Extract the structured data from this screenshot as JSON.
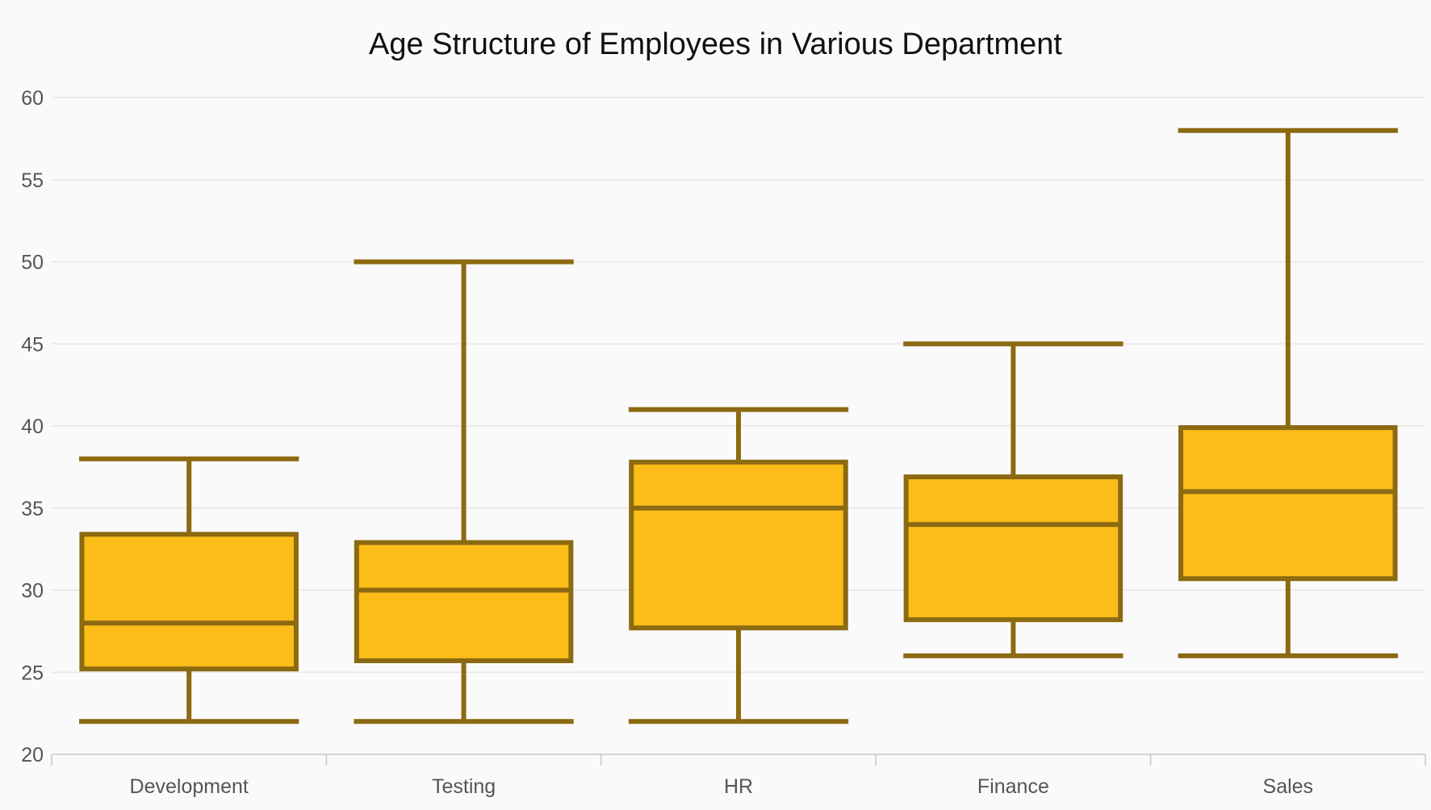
{
  "chart_data": {
    "type": "boxplot",
    "title": "Age Structure of Employees in Various Department",
    "xlabel": "",
    "ylabel": "",
    "ylim": [
      20,
      60
    ],
    "yticks": [
      20,
      25,
      30,
      35,
      40,
      45,
      50,
      55,
      60
    ],
    "grid": true,
    "categories": [
      "Development",
      "Testing",
      "HR",
      "Finance",
      "Sales"
    ],
    "boxes": [
      {
        "category": "Development",
        "min": 22,
        "q1": 25.2,
        "median": 28,
        "q3": 33.4,
        "max": 38
      },
      {
        "category": "Testing",
        "min": 22,
        "q1": 25.7,
        "median": 30,
        "q3": 32.9,
        "max": 50
      },
      {
        "category": "HR",
        "min": 22,
        "q1": 27.7,
        "median": 35,
        "q3": 37.8,
        "max": 41
      },
      {
        "category": "Finance",
        "min": 26,
        "q1": 28.2,
        "median": 34,
        "q3": 36.9,
        "max": 45
      },
      {
        "category": "Sales",
        "min": 26,
        "q1": 30.7,
        "median": 36,
        "q3": 39.9,
        "max": 58
      }
    ],
    "colors": {
      "box_fill": "#fdbd19",
      "box_stroke": "#8c6a12",
      "grid": "#e6e6e6",
      "axis": "#c8c8c8",
      "tick_text": "#555555"
    }
  }
}
